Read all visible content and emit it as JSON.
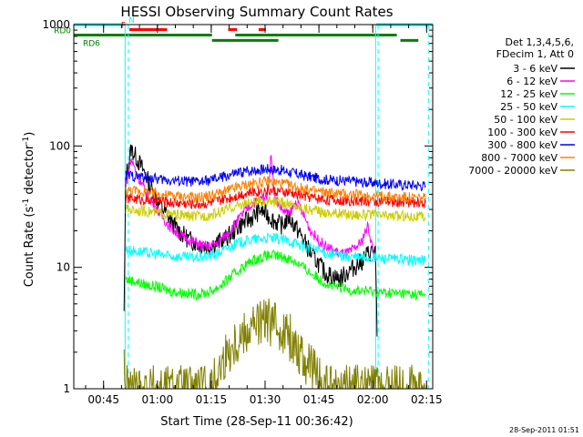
{
  "chart_data": {
    "type": "line",
    "title": "HESSI Observing Summary Count Rates",
    "xlabel": "Start Time (28-Sep-11 00:36:42)",
    "ylabel_main": "Count Rate (s",
    "ylabel_sup1": "-1",
    "ylabel_mid": " detector",
    "ylabel_sup2": "-1",
    "ylabel_end": ")",
    "y_scale": "log",
    "ylim": [
      1,
      1000
    ],
    "xlim_minutes": [
      0,
      100
    ],
    "y_ticks": [
      {
        "value": 1,
        "label": "1"
      },
      {
        "value": 10,
        "label": "10"
      },
      {
        "value": 100,
        "label": "100"
      },
      {
        "value": 1000,
        "label": "1000"
      }
    ],
    "x_ticks": [
      {
        "minute": 8.3,
        "label": "00:45"
      },
      {
        "minute": 23.3,
        "label": "01:00"
      },
      {
        "minute": 38.3,
        "label": "01:15"
      },
      {
        "minute": 53.3,
        "label": "01:30"
      },
      {
        "minute": 68.3,
        "label": "01:45"
      },
      {
        "minute": 83.3,
        "label": "02:00"
      },
      {
        "minute": 98.3,
        "label": "02:15"
      }
    ],
    "legend_header": [
      "Det 1,3,4,5,6,",
      "FDecim 1, Att 0"
    ],
    "legend_placement": "right",
    "series": [
      {
        "name": "3 - 6 keV",
        "color": "#000000",
        "x": [
          14,
          14.5,
          16,
          18,
          20,
          22,
          24,
          26,
          28,
          30,
          32,
          34,
          36,
          38,
          40,
          42,
          44,
          46,
          48,
          50,
          52,
          54,
          56,
          58,
          60,
          62,
          64,
          66,
          68,
          70,
          72,
          74,
          76,
          78,
          80,
          82,
          84,
          84.5
        ],
        "values": [
          4,
          55,
          95,
          75,
          58,
          42,
          33,
          27,
          22,
          19,
          17,
          16,
          15,
          15,
          16,
          17,
          19,
          22,
          24,
          26,
          30,
          27,
          24,
          22,
          26,
          21,
          17,
          13,
          11,
          9,
          8.5,
          8,
          9,
          10,
          11,
          13,
          14,
          2.7
        ]
      },
      {
        "name": "6 - 12 keV",
        "color": "#ff00ff",
        "x": [
          14.5,
          16,
          18,
          20,
          22,
          24,
          26,
          28,
          30,
          32,
          34,
          36,
          38,
          40,
          42,
          44,
          46,
          48,
          50,
          52,
          54,
          55,
          56,
          58,
          60,
          62,
          64,
          66,
          68,
          70,
          72,
          74,
          76,
          78,
          80,
          82,
          84
        ],
        "values": [
          48,
          78,
          55,
          42,
          34,
          28,
          23,
          20,
          18,
          17,
          16,
          15,
          15,
          16,
          18,
          21,
          25,
          30,
          34,
          36,
          40,
          85,
          38,
          30,
          27,
          35,
          27,
          20,
          17,
          15,
          14,
          13,
          13,
          14,
          16,
          22,
          11
        ]
      },
      {
        "name": "12 - 25 keV",
        "color": "#00ff00",
        "x": [
          14.5,
          16,
          18,
          20,
          22,
          24,
          26,
          28,
          30,
          32,
          34,
          36,
          38,
          40,
          42,
          44,
          46,
          48,
          50,
          52,
          54,
          56,
          58,
          60,
          62,
          64,
          66,
          68,
          70,
          72,
          74,
          76,
          78,
          80,
          82,
          84,
          86,
          88,
          90,
          92,
          94,
          96,
          98
        ],
        "values": [
          8,
          7.8,
          7.5,
          7.2,
          7,
          6.8,
          6.5,
          6.3,
          6.2,
          6.1,
          6,
          6.1,
          6.3,
          6.8,
          7.5,
          8.5,
          9.5,
          10.5,
          11.5,
          12,
          12.5,
          12.5,
          12.2,
          11.8,
          11,
          10,
          9,
          8.2,
          7.5,
          7,
          6.8,
          6.6,
          6.5,
          6.4,
          6.4,
          6.3,
          6.2,
          6.2,
          6.1,
          6.1,
          6,
          6,
          6
        ]
      },
      {
        "name": "25 - 50 keV",
        "color": "#00ffff",
        "x": [
          14.5,
          16,
          18,
          20,
          22,
          24,
          26,
          28,
          30,
          32,
          34,
          36,
          38,
          40,
          42,
          44,
          46,
          48,
          50,
          52,
          54,
          56,
          58,
          60,
          62,
          64,
          66,
          68,
          70,
          72,
          74,
          76,
          78,
          80,
          82,
          84,
          86,
          88,
          90,
          92,
          94,
          96,
          98
        ],
        "values": [
          14,
          13.8,
          13.5,
          13.2,
          13,
          12.8,
          12.5,
          12.3,
          12.2,
          12.1,
          12,
          12.2,
          12.5,
          13,
          14,
          15,
          16,
          16.5,
          17,
          17.2,
          17.5,
          17.2,
          17,
          16.5,
          15.8,
          15,
          14.3,
          13.8,
          13.2,
          12.8,
          12.5,
          12.3,
          12.2,
          12.1,
          12,
          12,
          11.9,
          11.8,
          11.7,
          11.6,
          11.5,
          11.5,
          11.5
        ]
      },
      {
        "name": "50 - 100 keV",
        "color": "#cccc00",
        "x": [
          14.5,
          16,
          18,
          20,
          22,
          24,
          26,
          28,
          30,
          32,
          34,
          36,
          38,
          40,
          42,
          44,
          46,
          48,
          50,
          52,
          54,
          56,
          58,
          60,
          62,
          64,
          66,
          68,
          70,
          72,
          74,
          76,
          78,
          80,
          82,
          84,
          86,
          88,
          90,
          92,
          94,
          96,
          98
        ],
        "values": [
          30,
          30,
          29.5,
          29,
          28.5,
          28,
          27.5,
          27,
          26.8,
          26.5,
          26.3,
          26.5,
          27,
          28,
          29.5,
          31,
          32.5,
          33.5,
          34,
          34.5,
          35,
          34.5,
          34,
          33,
          32,
          31,
          30,
          29,
          28.5,
          28,
          27.8,
          27.5,
          27.3,
          27.2,
          27,
          27,
          26.8,
          26.6,
          26.5,
          26.4,
          26.3,
          26.2,
          26
        ]
      },
      {
        "name": "100 - 300 keV",
        "color": "#ff0000",
        "x": [
          14.5,
          16,
          18,
          20,
          22,
          24,
          26,
          28,
          30,
          32,
          34,
          36,
          38,
          40,
          42,
          44,
          46,
          48,
          50,
          52,
          54,
          56,
          58,
          60,
          62,
          64,
          66,
          68,
          70,
          72,
          74,
          76,
          78,
          80,
          82,
          84,
          86,
          88,
          90,
          92,
          94,
          96,
          98
        ],
        "values": [
          37,
          37,
          36.5,
          36,
          35.5,
          35,
          34.5,
          34,
          33.8,
          33.5,
          33.3,
          33.5,
          34,
          35,
          36.5,
          38,
          39.5,
          41,
          42,
          42.5,
          43,
          42.5,
          42,
          41,
          40,
          39,
          38,
          37,
          36.5,
          36,
          35.8,
          35.5,
          35.3,
          35.2,
          35,
          35,
          34.8,
          34.6,
          34.5,
          34.4,
          34.3,
          34.2,
          34
        ]
      },
      {
        "name": "300 - 800 keV",
        "color": "#0000ff",
        "x": [
          14.5,
          16,
          18,
          20,
          22,
          24,
          26,
          28,
          30,
          32,
          34,
          36,
          38,
          40,
          42,
          44,
          46,
          48,
          50,
          52,
          54,
          56,
          58,
          60,
          62,
          64,
          66,
          68,
          70,
          72,
          74,
          76,
          78,
          80,
          82,
          84,
          86,
          88,
          90,
          92,
          94,
          96,
          98
        ],
        "values": [
          57,
          57,
          56,
          55,
          54,
          53,
          52.5,
          52,
          51.5,
          51,
          50.5,
          51,
          52,
          54,
          56,
          58,
          60,
          62,
          63,
          64,
          65,
          64,
          63,
          61,
          59,
          57,
          55.5,
          54,
          53,
          52.5,
          52,
          51.5,
          51,
          50.5,
          50,
          49.5,
          49,
          48.5,
          48.2,
          48,
          47.8,
          47.5,
          47
        ]
      },
      {
        "name": "800 - 7000 keV",
        "color": "#ff8000",
        "x": [
          14.5,
          16,
          18,
          20,
          22,
          24,
          26,
          28,
          30,
          32,
          34,
          36,
          38,
          40,
          42,
          44,
          46,
          48,
          50,
          52,
          54,
          56,
          58,
          60,
          62,
          64,
          66,
          68,
          70,
          72,
          74,
          76,
          78,
          80,
          82,
          84,
          86,
          88,
          90,
          92,
          94,
          96,
          98
        ],
        "values": [
          43,
          43,
          42.5,
          42,
          41,
          40,
          39.5,
          39,
          38.5,
          38,
          37.5,
          38,
          39,
          40.5,
          42,
          44,
          46,
          48,
          49,
          50,
          51,
          50,
          49,
          47.5,
          46,
          44.5,
          43,
          42,
          41.5,
          41,
          40.5,
          40,
          39.8,
          39.5,
          39,
          38.8,
          38.5,
          38.2,
          38,
          37.8,
          37.5,
          37.2,
          37
        ]
      },
      {
        "name": "7000 - 20000 keV",
        "color": "#808000",
        "x": [
          14,
          14.5,
          16,
          18,
          20,
          22,
          24,
          26,
          28,
          30,
          32,
          34,
          36,
          38,
          40,
          42,
          44,
          46,
          48,
          50,
          52,
          54,
          56,
          58,
          60,
          62,
          64,
          66,
          68,
          70,
          72,
          74,
          76,
          78,
          80,
          82,
          84,
          86,
          88,
          90,
          92,
          94,
          96,
          98
        ],
        "values": [
          1.8,
          1,
          1,
          1,
          1,
          1,
          1,
          1,
          1,
          1,
          1,
          1,
          1,
          1,
          1.3,
          1.8,
          2.2,
          2.6,
          3,
          3.3,
          3.5,
          3.6,
          3.4,
          3.1,
          2.7,
          2.2,
          1.8,
          1.5,
          1.2,
          1,
          1,
          1,
          1,
          1,
          1,
          1,
          1,
          1,
          1,
          1,
          1,
          1,
          1,
          1
        ]
      }
    ],
    "flag_bars": [
      {
        "label": "N",
        "color": "#00ffff",
        "row": 1000,
        "segments": [
          [
            0,
            14.5
          ],
          [
            84.3,
            100
          ]
        ]
      },
      {
        "label": "F",
        "color": "#ff0000",
        "row": 910,
        "segments": [
          [
            15.5,
            26
          ],
          [
            43,
            45.5
          ],
          [
            51.5,
            53.5
          ]
        ]
      },
      {
        "label": "RD0",
        "color": "#008000",
        "row": 820,
        "segments": [
          [
            0,
            38.5
          ],
          [
            45,
            90
          ]
        ]
      },
      {
        "label": "RD6",
        "color": "#008000",
        "row": 740,
        "segments": [
          [
            38.5,
            57
          ],
          [
            91,
            96
          ]
        ]
      }
    ],
    "vertical_markers": [
      {
        "minute": 14.3,
        "color": "#00ffff",
        "style": "solid"
      },
      {
        "minute": 15.2,
        "color": "#00ffff",
        "style": "dashed"
      },
      {
        "minute": 84.1,
        "color": "#00ffff",
        "style": "solid"
      },
      {
        "minute": 84.8,
        "color": "#00ffff",
        "style": "dashed"
      },
      {
        "minute": 98.8,
        "color": "#00ffff",
        "style": "dashed"
      }
    ],
    "stamp": "28-Sep-2011 01:51"
  }
}
